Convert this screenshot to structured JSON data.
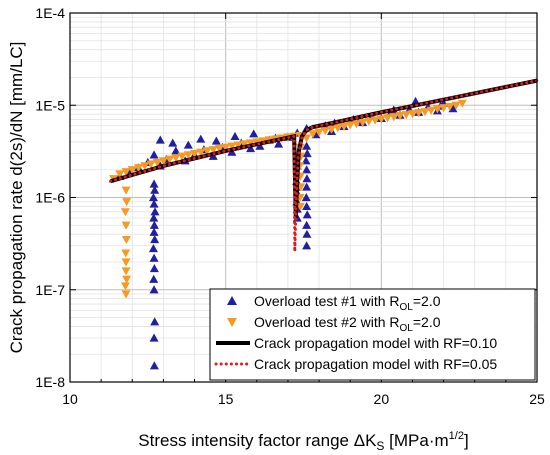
{
  "chart_data": {
    "type": "scatter",
    "title": "",
    "xlabel": "Stress intensity factor range ΔK",
    "xlabel_sub": "S",
    "xlabel_unit_pre": " [MPa·m",
    "xlabel_unit_sup": "1/2",
    "xlabel_unit_post": "]",
    "ylabel": "Crack propagation rate d(2s)/dN [mm/LC]",
    "x_scale": "linear",
    "y_scale": "log",
    "xlim": [
      10,
      25
    ],
    "ylim": [
      1e-08,
      0.0001
    ],
    "x_ticks": [
      10,
      15,
      20,
      25
    ],
    "x_tick_labels": [
      "10",
      "15",
      "20",
      "25"
    ],
    "y_ticks": [
      1e-08,
      1e-07,
      1e-06,
      1e-05,
      0.0001
    ],
    "y_tick_labels": [
      "1E-8",
      "1E-7",
      "1E-6",
      "1E-5",
      "1E-4"
    ],
    "grid": true,
    "legend_position": "bottom-right",
    "legend": [
      {
        "label": "Overload test #1 with R",
        "sub": "OL",
        "post": "=2.0",
        "marker": "triangle-up",
        "color": "#1f1fa3"
      },
      {
        "label": "Overload test #2 with R",
        "sub": "OL",
        "post": "=2.0",
        "marker": "triangle-down",
        "color": "#f59a23"
      },
      {
        "label": "Crack propagation model with RF=0.10",
        "sub": "",
        "post": "",
        "line": "solid",
        "color": "#000000"
      },
      {
        "label": "Crack propagation model with RF=0.05",
        "sub": "",
        "post": "",
        "line": "dotted",
        "color": "#e31a1c"
      }
    ],
    "series": [
      {
        "name": "Overload test #1 with ROL=2.0",
        "marker": "triangle-up",
        "color": "#1f1fa3",
        "x": [
          11.6,
          11.9,
          12.2,
          12.5,
          12.7,
          12.9,
          13.1,
          13.4,
          13.7,
          14.0,
          14.3,
          14.6,
          14.9,
          15.2,
          15.5,
          15.8,
          16.1,
          16.4,
          16.7,
          17.0,
          17.3,
          17.6,
          17.9,
          18.2,
          18.5,
          18.8,
          19.1,
          19.4,
          19.7,
          20.0,
          20.3,
          20.6,
          20.9,
          21.2,
          21.5,
          21.8,
          22.0,
          22.3,
          12.7,
          12.72,
          12.68,
          12.7,
          12.73,
          12.69,
          12.71,
          12.7,
          12.72,
          12.68,
          12.7,
          12.71,
          12.69,
          12.7,
          12.72,
          12.7,
          12.71,
          17.3,
          17.32,
          17.28,
          17.3,
          17.31,
          17.29,
          17.3,
          17.3,
          17.6,
          17.62,
          17.58,
          17.6,
          17.61,
          17.6,
          17.59,
          17.6,
          17.62,
          17.6,
          17.61,
          17.6,
          12.9,
          13.3,
          13.8,
          14.2,
          14.7,
          15.3,
          15.9,
          16.6,
          18.4,
          19.3,
          20.4,
          21.1,
          21.9
        ],
        "y": [
          1.7e-06,
          1.9e-06,
          2.1e-06,
          2.4e-06,
          2.9e-06,
          2.2e-06,
          2.6e-06,
          3.2e-06,
          2.5e-06,
          2.9e-06,
          3.3e-06,
          2.8e-06,
          3.5e-06,
          3.1e-06,
          3.9e-06,
          3.4e-06,
          3.6e-06,
          4.2e-06,
          3.8e-06,
          4.5e-06,
          5e-06,
          5.6e-06,
          4.8e-06,
          6e-06,
          6.4e-06,
          5.9e-06,
          7e-06,
          6.5e-06,
          7.6e-06,
          7.2e-06,
          8.3e-06,
          7.8e-06,
          9e-06,
          8.4e-06,
          9.6e-06,
          8.7e-06,
          1.05e-05,
          9.2e-06,
          1.4e-06,
          1.2e-06,
          1e-06,
          8.5e-07,
          7e-07,
          6e-07,
          5e-07,
          4.2e-07,
          3.5e-07,
          2.8e-07,
          2.2e-07,
          1.7e-07,
          1.3e-07,
          1e-07,
          4.5e-08,
          3e-08,
          1.5e-08,
          2.2e-06,
          1.8e-06,
          1.5e-06,
          1.3e-06,
          1.1e-06,
          9e-07,
          7.5e-07,
          6e-07,
          3.6e-06,
          3e-06,
          2.5e-06,
          2e-06,
          1.6e-06,
          1.3e-06,
          1e-06,
          8e-07,
          6.5e-07,
          5e-07,
          4e-07,
          3e-07,
          4.2e-06,
          3.9e-06,
          3.7e-06,
          4.3e-06,
          4.1e-06,
          4.6e-06,
          4.9e-06,
          4.4e-06,
          5.2e-06,
          6.8e-06,
          8.9e-06,
          1.1e-05,
          9.8e-06
        ]
      },
      {
        "name": "Overload test #2 with ROL=2.0",
        "marker": "triangle-down",
        "color": "#f59a23",
        "x": [
          11.4,
          11.6,
          11.8,
          12.0,
          12.2,
          12.4,
          12.6,
          12.8,
          13.0,
          13.2,
          13.4,
          13.6,
          13.8,
          14.0,
          14.2,
          14.4,
          14.6,
          14.8,
          15.0,
          15.2,
          15.4,
          15.6,
          15.8,
          16.0,
          16.2,
          16.4,
          16.6,
          16.8,
          17.0,
          17.2,
          17.4,
          17.6,
          17.8,
          18.0,
          18.2,
          18.4,
          18.6,
          18.8,
          19.0,
          19.2,
          19.4,
          19.6,
          19.8,
          20.0,
          20.2,
          20.4,
          20.6,
          20.8,
          21.0,
          21.2,
          21.4,
          21.6,
          21.8,
          22.0,
          22.2,
          22.4,
          22.6,
          11.8,
          11.82,
          11.78,
          11.8,
          11.81,
          11.79,
          11.8,
          11.8,
          11.82,
          11.78,
          11.8,
          17.4,
          17.42,
          17.38,
          17.4,
          17.41,
          17.39,
          17.4
        ],
        "y": [
          1.6e-06,
          1.8e-06,
          1.9e-06,
          2e-06,
          2.1e-06,
          2.2e-06,
          2.3e-06,
          2.4e-06,
          2.5e-06,
          2.6e-06,
          2.7e-06,
          2.8e-06,
          2.9e-06,
          3e-06,
          3.1e-06,
          3.2e-06,
          3.3e-06,
          3.4e-06,
          3.5e-06,
          3.6e-06,
          3.7e-06,
          3.8e-06,
          3.9e-06,
          4e-06,
          4.1e-06,
          4.2e-06,
          4.3e-06,
          4.4e-06,
          4.5e-06,
          4.6e-06,
          4.7e-06,
          4.4e-06,
          4.9e-06,
          5.1e-06,
          5.3e-06,
          5.5e-06,
          5.7e-06,
          5.9e-06,
          6.1e-06,
          6.3e-06,
          6.5e-06,
          6.7e-06,
          6.9e-06,
          7.1e-06,
          7.3e-06,
          7.5e-06,
          7.7e-06,
          7.9e-06,
          8.1e-06,
          8.3e-06,
          8.5e-06,
          8.8e-06,
          9.1e-06,
          9.4e-06,
          9.7e-06,
          1e-05,
          1.05e-05,
          1.2e-06,
          9e-07,
          7e-07,
          5e-07,
          3.5e-07,
          2.5e-07,
          2e-07,
          1.6e-07,
          1.3e-07,
          1.1e-07,
          9e-08,
          3.5e-06,
          2.8e-06,
          2.2e-06,
          1.7e-06,
          1.3e-06,
          1e-06,
          8e-07
        ]
      },
      {
        "name": "Crack propagation model with RF=0.10",
        "line": "solid",
        "color": "#000000",
        "x": [
          11.3,
          13.0,
          15.0,
          17.2,
          17.25,
          17.3,
          17.35,
          17.45,
          17.6,
          17.8,
          18.5,
          20.0,
          22.0,
          25.0
        ],
        "y": [
          1.5e-06,
          2.2e-06,
          3.2e-06,
          4.6e-06,
          6e-07,
          1.6e-06,
          3.2e-06,
          4.6e-06,
          5.4e-06,
          5.8e-06,
          6.5e-06,
          8.4e-06,
          1.15e-05,
          1.85e-05
        ]
      },
      {
        "name": "Crack propagation model with RF=0.05",
        "line": "dotted",
        "color": "#e31a1c",
        "x": [
          11.3,
          13.0,
          15.0,
          17.2,
          17.22,
          17.27,
          17.33,
          17.45,
          17.6,
          17.8,
          18.5,
          20.0,
          22.0,
          25.0
        ],
        "y": [
          1.5e-06,
          2.2e-06,
          3.2e-06,
          4.6e-06,
          2.6e-07,
          1e-06,
          2.8e-06,
          4.5e-06,
          5.4e-06,
          5.8e-06,
          6.5e-06,
          8.4e-06,
          1.15e-05,
          1.85e-05
        ]
      }
    ]
  }
}
